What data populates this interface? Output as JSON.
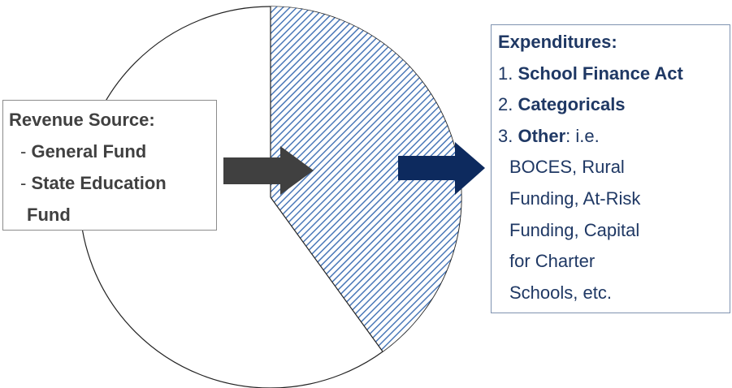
{
  "left_box": {
    "title": "Revenue Source:",
    "items": [
      {
        "prefix": "-",
        "lines": [
          "General Fund"
        ]
      },
      {
        "prefix": "-",
        "lines": [
          "State Education",
          "Fund"
        ]
      }
    ]
  },
  "right_box": {
    "title": "Expenditures:",
    "items": [
      {
        "number": "1.",
        "label": "School Finance Act"
      },
      {
        "number": "2.",
        "label": "Categoricals"
      },
      {
        "number": "3.",
        "label": "Other",
        "suffix": ": i.e.",
        "detail": [
          "BOCES, Rural",
          "Funding, At-Risk",
          "Funding, Capital",
          "for Charter",
          "Schools, etc."
        ]
      }
    ]
  }
}
